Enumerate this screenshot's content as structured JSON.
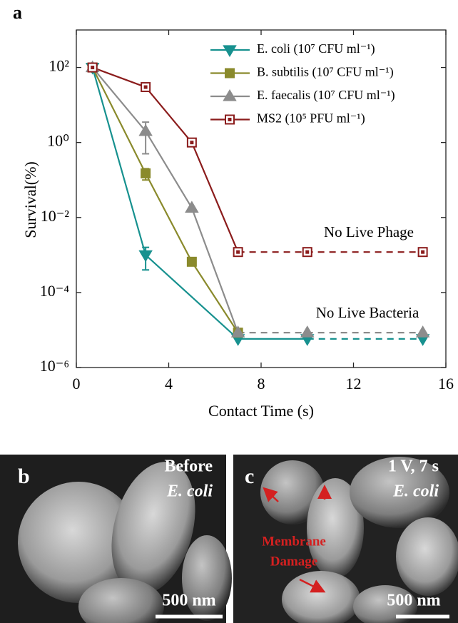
{
  "chart_data": {
    "type": "line",
    "panel_label": "a",
    "log_y": true,
    "x_label": "Contact Time (s)",
    "y_label": "Survival(%)",
    "xlim": [
      0,
      16
    ],
    "xticks": [
      0,
      4,
      8,
      12,
      16
    ],
    "ylim": [
      1e-06,
      1000
    ],
    "yticks": [
      {
        "value": 1e-06,
        "label": "10⁻⁶"
      },
      {
        "value": 0.0001,
        "label": "10⁻⁴"
      },
      {
        "value": 0.01,
        "label": "10⁻²"
      },
      {
        "value": 1,
        "label": "10⁰"
      },
      {
        "value": 100,
        "label": "10²"
      }
    ],
    "legend": "upper right",
    "series": [
      {
        "name": "E. coli (10⁷ CFU ml⁻¹)",
        "color": "#17918f",
        "marker": "triangle-down",
        "dashed_from": 3,
        "x": [
          0.7,
          3,
          7,
          10,
          15
        ],
        "values": [
          100,
          0.001,
          5.8e-06,
          5.8e-06,
          5.8e-06
        ],
        "errors": [
          null,
          0.0006,
          null,
          null,
          null
        ]
      },
      {
        "name": "B. subtilis (10⁷ CFU ml⁻¹)",
        "color": "#8a8a2c",
        "marker": "square",
        "dashed_from": 3,
        "x": [
          0.7,
          3,
          5,
          7
        ],
        "values": [
          100,
          0.15,
          0.00066,
          8.5e-06
        ],
        "errors": [
          null,
          0.05,
          null,
          null
        ]
      },
      {
        "name": "E. faecalis (10⁷ CFU ml⁻¹)",
        "color": "#8c8c8c",
        "marker": "triangle-up",
        "dashed_from": 3,
        "x": [
          0.7,
          3,
          5,
          7,
          10,
          15
        ],
        "values": [
          100,
          2,
          0.018,
          8.5e-06,
          8.5e-06,
          8.5e-06
        ],
        "errors": [
          null,
          1.5,
          null,
          null,
          null,
          null
        ]
      },
      {
        "name": "MS2 (10⁵ PFU ml⁻¹)",
        "color": "#8b1c1c",
        "marker": "open-square",
        "dashed_from": 3,
        "x": [
          0.7,
          3,
          5,
          7,
          10,
          15
        ],
        "values": [
          100,
          30,
          1,
          0.0012,
          0.0012,
          0.0012
        ],
        "errors": [
          null,
          null,
          null,
          null,
          null,
          null
        ]
      }
    ],
    "annotations": [
      "No Live Phage",
      "No Live Bacteria"
    ]
  },
  "images": [
    {
      "label": "b",
      "caption_lines": [
        "Before",
        "E. coli"
      ],
      "scale_bar": "500 nm"
    },
    {
      "label": "c",
      "caption_lines": [
        "1 V, 7 s",
        "E. coli"
      ],
      "annotation_lines": [
        "Membrane",
        "Damage"
      ],
      "scale_bar": "500 nm"
    }
  ]
}
